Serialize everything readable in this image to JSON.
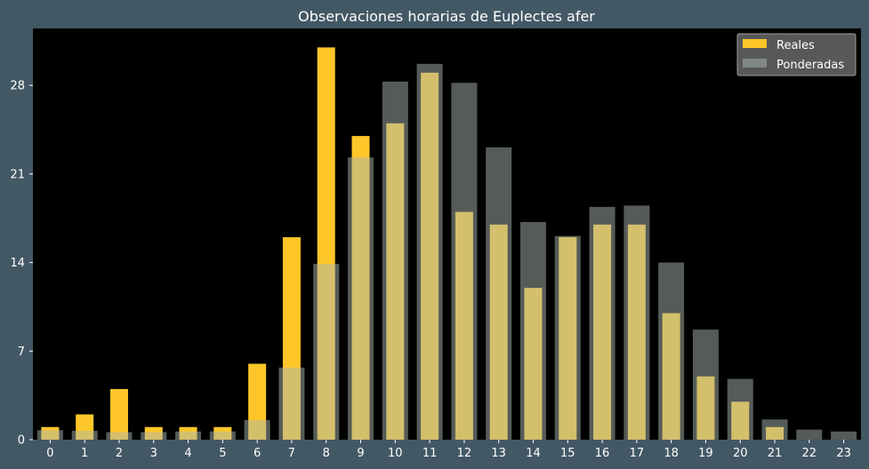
{
  "chart_data": {
    "type": "bar",
    "title": "Observaciones horarias de Euplectes afer",
    "xlabel": "",
    "ylabel": "",
    "categories": [
      "0",
      "1",
      "2",
      "3",
      "4",
      "5",
      "6",
      "7",
      "8",
      "9",
      "10",
      "11",
      "12",
      "13",
      "14",
      "15",
      "16",
      "17",
      "18",
      "19",
      "20",
      "21",
      "22",
      "23"
    ],
    "series": [
      {
        "name": "Reales",
        "color": "#ffc629",
        "values": [
          1,
          2,
          4,
          1,
          1,
          1,
          6,
          16,
          31,
          24,
          25,
          29,
          18,
          17,
          12,
          16,
          17,
          17,
          10,
          5,
          3,
          1,
          0,
          0
        ]
      },
      {
        "name": "Ponderadas",
        "color": "#aab8b0",
        "values": [
          0.75,
          0.7,
          0.6,
          0.6,
          0.65,
          0.65,
          1.55,
          5.7,
          13.9,
          22.3,
          28.3,
          29.7,
          28.2,
          23.1,
          17.2,
          16.1,
          18.4,
          18.5,
          14.0,
          8.7,
          4.8,
          1.6,
          0.8,
          0.65
        ]
      }
    ],
    "ylim": [
      0,
      32.5
    ],
    "yticks": [
      0,
      7,
      14,
      21,
      28
    ],
    "grid": false,
    "legend": "top-right",
    "background": "#000000",
    "page_background": "#425864"
  }
}
